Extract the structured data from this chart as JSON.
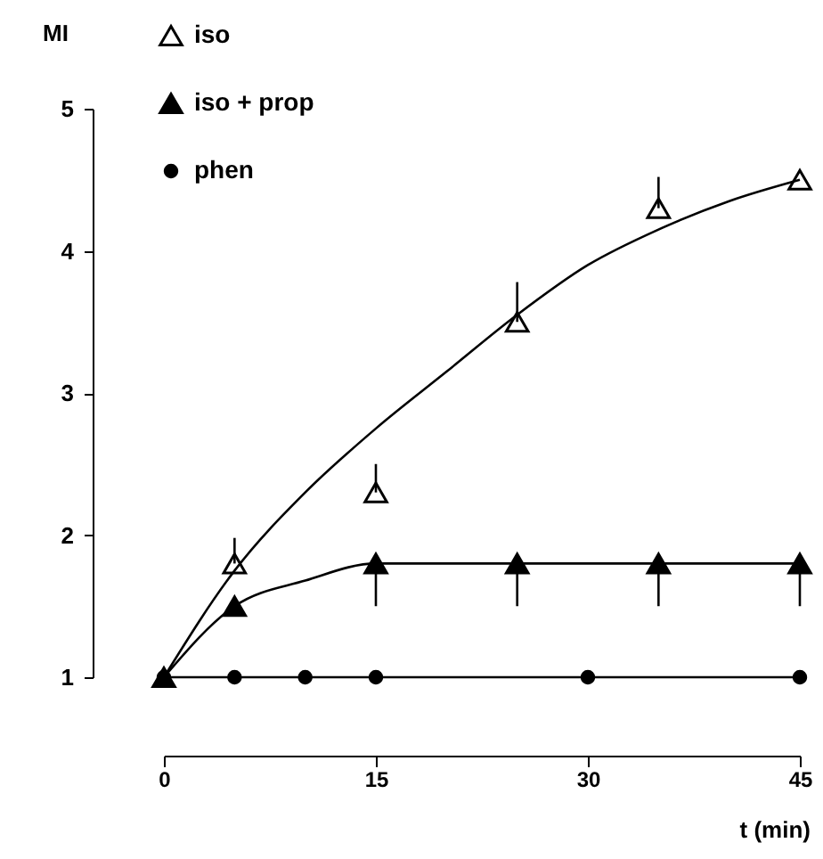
{
  "chart_data": {
    "type": "scatter",
    "xlabel": "t (min)",
    "ylabel": "MI",
    "xlim": [
      0,
      45
    ],
    "xticks": [
      0,
      15,
      30,
      45
    ],
    "ylim": [
      1,
      5
    ],
    "yticks": [
      1,
      2,
      3,
      4,
      5
    ],
    "grid": false,
    "legend": "top left",
    "series": [
      {
        "name": "iso",
        "type": "scatter",
        "marker": "triangle",
        "color": "#000000",
        "x": [
          5,
          15,
          25,
          35,
          45
        ],
        "values": [
          1.8,
          2.3,
          3.5,
          4.3,
          4.5
        ],
        "errors": [
          [
            1.8,
            1.98
          ],
          [
            2.3,
            2.5
          ],
          [
            3.5,
            3.78
          ],
          [
            4.3,
            4.52
          ],
          null
        ]
      },
      {
        "name": "iso + prop",
        "type": "scatter",
        "marker": "triangle",
        "color": "#000000",
        "x": [
          0,
          5,
          15,
          25,
          35,
          45
        ],
        "values": [
          1,
          1.5,
          1.8,
          1.8,
          1.8,
          1.8
        ],
        "errors": [
          null,
          null,
          [
            1.5,
            1.8
          ],
          [
            1.5,
            1.8
          ],
          [
            1.5,
            1.8
          ],
          [
            1.5,
            1.8
          ]
        ]
      },
      {
        "name": "phen",
        "type": "line",
        "marker": "circle",
        "color": "#000000",
        "x": [
          0,
          5,
          10,
          15,
          30,
          45
        ],
        "values": [
          1,
          1,
          1,
          1,
          1,
          1
        ]
      },
      {
        "type": "line",
        "marker": "none",
        "color": "#000000",
        "x": [
          0,
          5,
          10,
          15,
          20,
          25,
          30,
          35,
          40,
          45
        ],
        "values": [
          1,
          1.75,
          2.3,
          2.75,
          3.15,
          3.55,
          3.9,
          4.15,
          4.35,
          4.5
        ]
      },
      {
        "type": "line",
        "marker": "none",
        "color": "#000000",
        "x": [
          0,
          5,
          10,
          15,
          45
        ],
        "values": [
          1,
          1.5,
          1.68,
          1.8,
          1.8
        ]
      }
    ]
  }
}
